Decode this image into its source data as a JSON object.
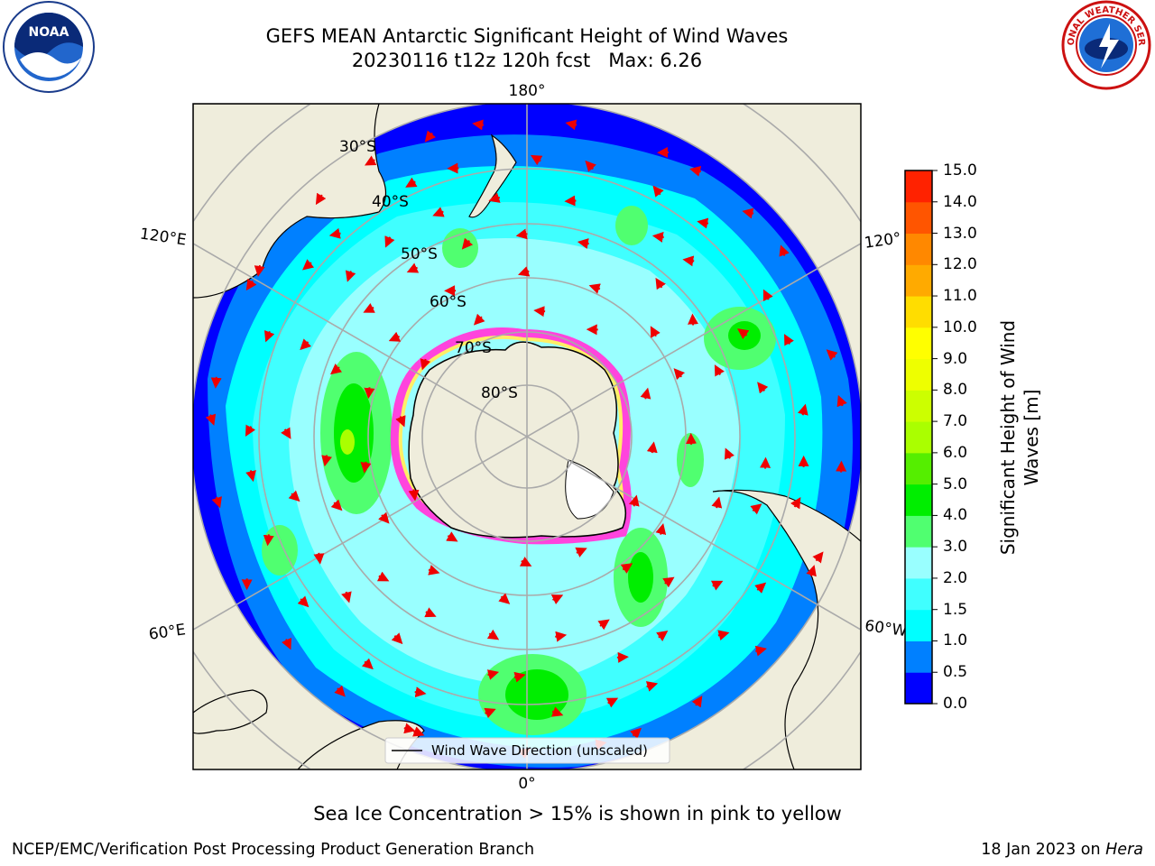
{
  "header": {
    "title_line1": "GEFS MEAN Antarctic Significant Height of Wind Waves",
    "title_line2": "20230116 t12z 120h fcst   Max: 6.26"
  },
  "logos": {
    "left": {
      "icon": "noaa-logo",
      "text": "NOAA"
    },
    "right": {
      "icon": "national-weather-service-logo",
      "text": "NATIONAL WEATHER SERVICE"
    }
  },
  "map": {
    "projection": "south-polar-stereographic",
    "longitude_labels": {
      "top": "180°",
      "left_upper": "120°E",
      "right_upper": "120°",
      "left_lower": "60°E",
      "right_lower": "60°W",
      "bottom": "0°"
    },
    "latitude_labels": [
      "30°S",
      "40°S",
      "50°S",
      "60°S",
      "70°S",
      "80°S"
    ],
    "legend_label": "Wind Wave Direction (unscaled)"
  },
  "colorbar": {
    "title": "Significant Height of Wind Waves [m]",
    "levels": [
      "0.0",
      "0.5",
      "1.0",
      "1.5",
      "2.0",
      "3.0",
      "4.0",
      "5.0",
      "6.0",
      "7.0",
      "8.0",
      "9.0",
      "10.0",
      "11.0",
      "12.0",
      "13.0",
      "14.0",
      "15.0"
    ],
    "colors": [
      "#0000ff",
      "#0080ff",
      "#00ffff",
      "#40ffff",
      "#99ffff",
      "#50ff70",
      "#00ee00",
      "#55ee00",
      "#aaff00",
      "#ccff00",
      "#eeff00",
      "#ffff00",
      "#ffdd00",
      "#ffaa00",
      "#ff8800",
      "#ff5500",
      "#ff2200"
    ]
  },
  "caption": "Sea Ice Concentration > 15% is shown in pink to yellow",
  "footer": {
    "left": "NCEP/EMC/Verification Post Processing Product Generation Branch",
    "right_date": "18 Jan 2023 on ",
    "right_machine": "Hera"
  }
}
